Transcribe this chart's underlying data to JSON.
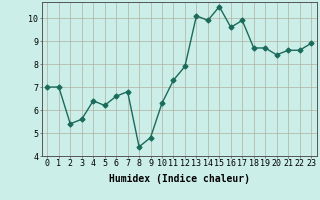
{
  "x": [
    0,
    1,
    2,
    3,
    4,
    5,
    6,
    7,
    8,
    9,
    10,
    11,
    12,
    13,
    14,
    15,
    16,
    17,
    18,
    19,
    20,
    21,
    22,
    23
  ],
  "y": [
    7.0,
    7.0,
    5.4,
    5.6,
    6.4,
    6.2,
    6.6,
    6.8,
    4.4,
    4.8,
    6.3,
    7.3,
    7.9,
    10.1,
    9.9,
    10.5,
    9.6,
    9.9,
    8.7,
    8.7,
    8.4,
    8.6,
    8.6,
    8.9
  ],
  "line_color": "#1a6b5a",
  "bg_color": "#cceee8",
  "grid_color": "#b0b0a0",
  "xlabel": "Humidex (Indice chaleur)",
  "ylim": [
    4,
    10.7
  ],
  "xlim": [
    -0.5,
    23.5
  ],
  "yticks": [
    4,
    5,
    6,
    7,
    8,
    9,
    10
  ],
  "xticks": [
    0,
    1,
    2,
    3,
    4,
    5,
    6,
    7,
    8,
    9,
    10,
    11,
    12,
    13,
    14,
    15,
    16,
    17,
    18,
    19,
    20,
    21,
    22,
    23
  ],
  "xlabel_fontsize": 7,
  "tick_fontsize": 6,
  "marker": "D",
  "marker_size": 2.5,
  "line_width": 1.0
}
